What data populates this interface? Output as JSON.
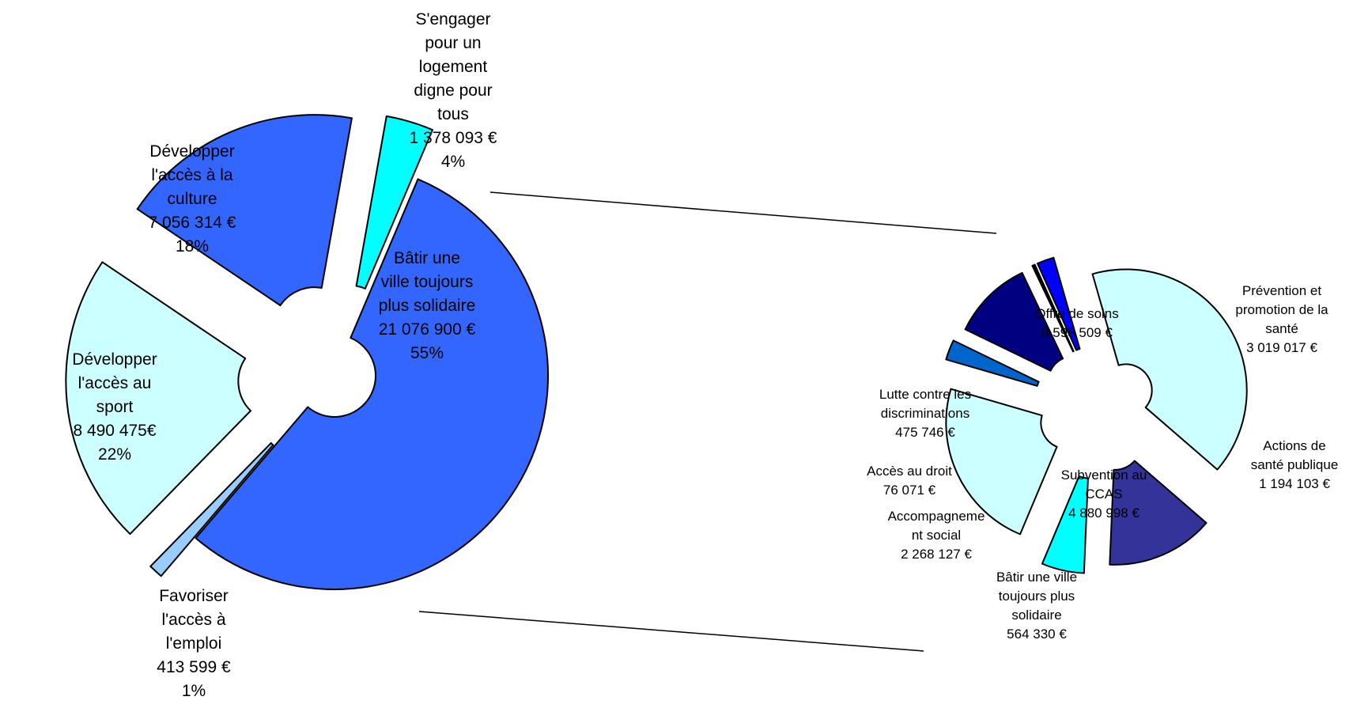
{
  "chart_data": [
    {
      "type": "pie",
      "variant": "exploded-doughnut",
      "title": "",
      "series": [
        {
          "label": "Bâtir une ville toujours plus solidaire",
          "lines": [
            "Bâtir une",
            "ville toujours",
            "plus solidaire",
            "21 076 900 €",
            "55%"
          ],
          "value": 21076900,
          "percent": 55,
          "color": "#3366FF"
        },
        {
          "label": "Favoriser l'accès à l'emploi",
          "lines": [
            "Favoriser",
            "l'accès à",
            "l'emploi",
            "413 599 €",
            "1%"
          ],
          "value": 413599,
          "percent": 1,
          "color": "#99CCFF"
        },
        {
          "label": "Développer l'accès au sport",
          "lines": [
            "Développer",
            "l'accès au",
            "sport",
            "8 490 475€",
            "22%"
          ],
          "value": 8490475,
          "percent": 22,
          "color": "#CCFFFF"
        },
        {
          "label": "Développer l'accès à la culture",
          "lines": [
            "Développer",
            "l'accès à la",
            "culture",
            "7 056 314 €",
            "18%"
          ],
          "value": 7056314,
          "percent": 18,
          "color": "#3366FF"
        },
        {
          "label": "S'engager pour un logement digne pour tous",
          "lines": [
            "S'engager",
            "pour un",
            "logement",
            "digne pour",
            "tous",
            "1 378 093 €",
            "4%"
          ],
          "value": 1378093,
          "percent": 4,
          "color": "#00FFFF"
        }
      ]
    },
    {
      "type": "pie",
      "variant": "exploded-doughnut",
      "title": "",
      "series": [
        {
          "label": "Offre de soins",
          "lines": [
            "Offre de soins",
            "8 598 509 €"
          ],
          "value": 8598509,
          "color": "#CCFFFF"
        },
        {
          "label": "Prévention et promotion de la santé",
          "lines": [
            "Prévention et",
            "promotion de la",
            "santé",
            "3 019 017 €"
          ],
          "value": 3019017,
          "color": "#333399"
        },
        {
          "label": "Actions de santé publique",
          "lines": [
            "Actions de",
            "santé publique",
            "1 194 103 €"
          ],
          "value": 1194103,
          "color": "#00FFFF"
        },
        {
          "label": "Subvention au CCAS",
          "lines": [
            "Subvention au",
            "CCAS",
            "4 880 998 €"
          ],
          "value": 4880998,
          "color": "#CCFFFF"
        },
        {
          "label": "Bâtir une ville toujours plus solidaire",
          "lines": [
            "Bâtir une ville",
            "toujours plus",
            "solidaire",
            "564 330 €"
          ],
          "value": 564330,
          "color": "#0066CC"
        },
        {
          "label": "Accompagnement social",
          "lines": [
            "Accompagneme",
            "nt social",
            "2 268 127 €"
          ],
          "value": 2268127,
          "color": "#000080"
        },
        {
          "label": "Accès au droit",
          "lines": [
            "Accès au droit",
            "76 071 €"
          ],
          "value": 76071,
          "color": "#000000"
        },
        {
          "label": "Lutte contre les discriminations",
          "lines": [
            "Lutte contre les",
            "discriminations",
            "475 746 €"
          ],
          "value": 475746,
          "color": "#0000FF"
        }
      ]
    }
  ]
}
